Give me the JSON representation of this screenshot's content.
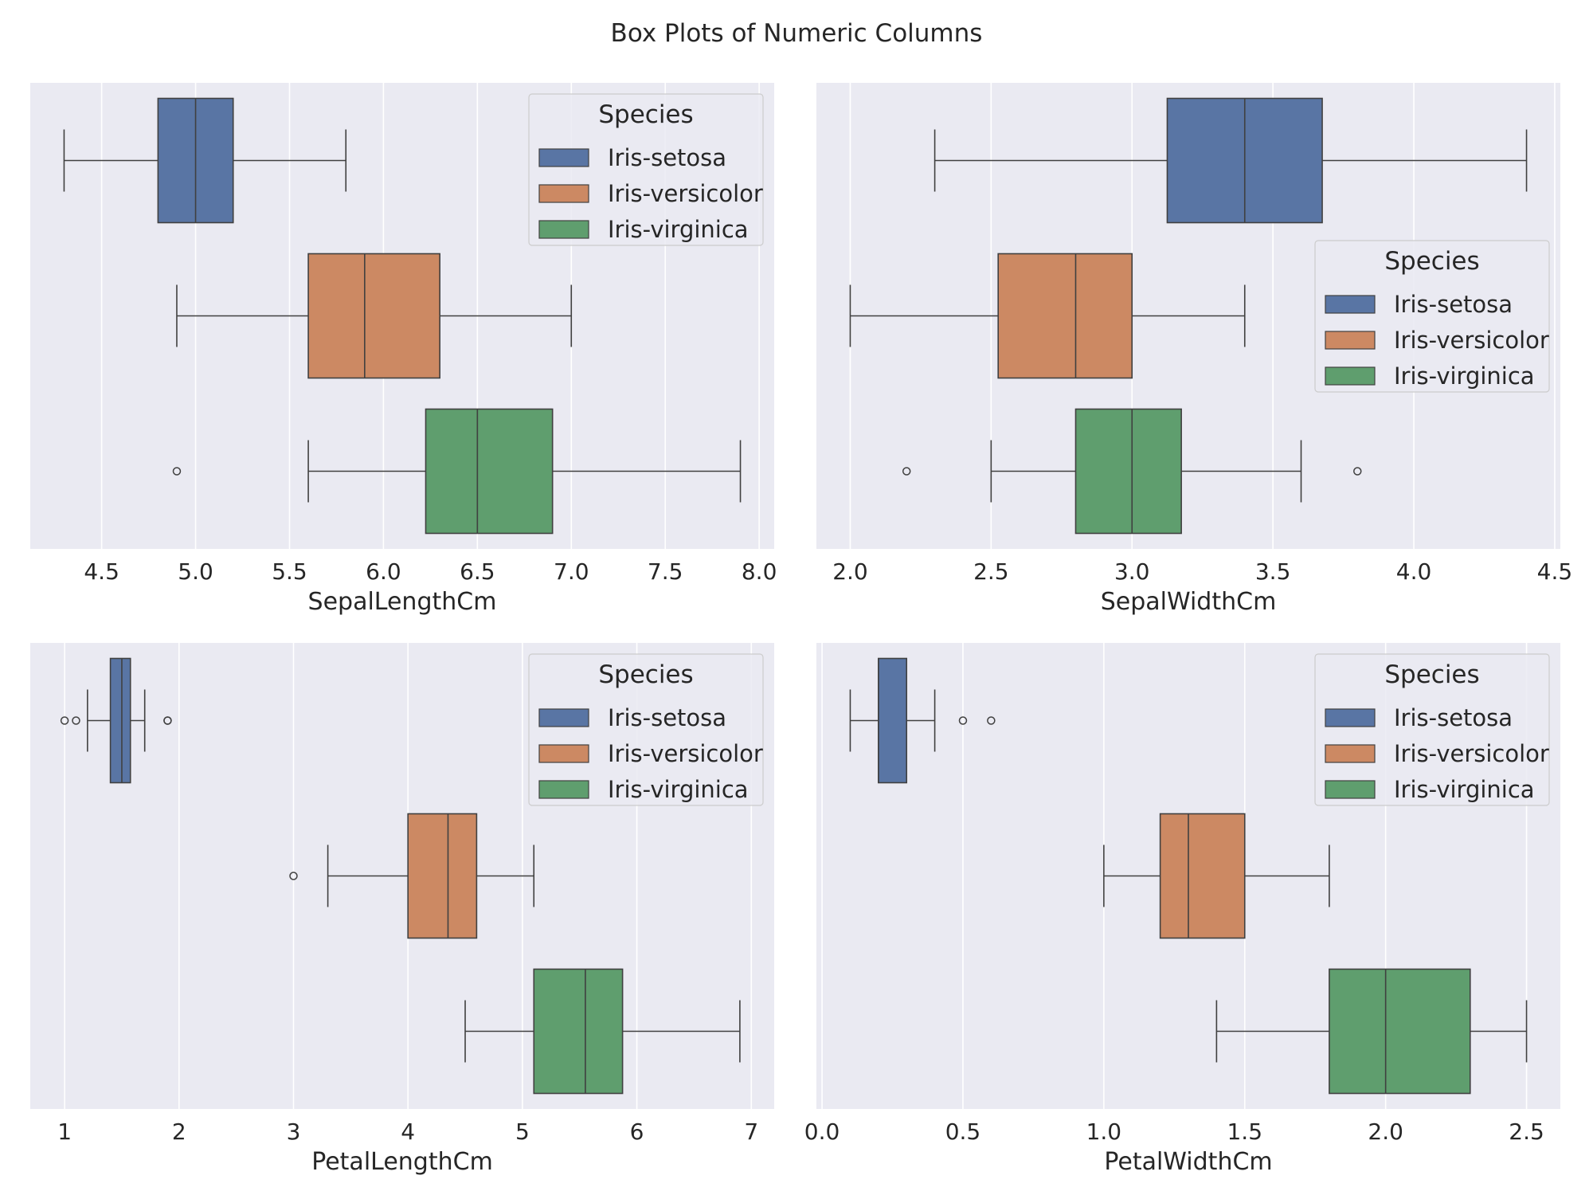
{
  "figure": {
    "title": "Box Plots of Numeric Columns"
  },
  "colors": {
    "background": "#eaeaf2",
    "grid": "#ffffff",
    "line": "#404040",
    "Iris-setosa": "#5975a4",
    "Iris-versicolor": "#cc8963",
    "Iris-virginica": "#5f9e6e"
  },
  "legend": {
    "title": "Species",
    "entries": [
      "Iris-setosa",
      "Iris-versicolor",
      "Iris-virginica"
    ]
  },
  "chart_data": [
    {
      "type": "box",
      "orientation": "horizontal",
      "xlabel": "SepalLengthCm",
      "xlim": [
        4.12,
        8.08
      ],
      "ticks": [
        "4.5",
        "5.0",
        "5.5",
        "6.0",
        "6.5",
        "7.0",
        "7.5",
        "8.0"
      ],
      "tick_values": [
        4.5,
        5.0,
        5.5,
        6.0,
        6.5,
        7.0,
        7.5,
        8.0
      ],
      "grid": true,
      "legend_location": "upper-right",
      "series": [
        {
          "name": "Iris-setosa",
          "whisker_low": 4.3,
          "q1": 4.8,
          "median": 5.0,
          "q3": 5.2,
          "whisker_high": 5.8,
          "outliers": []
        },
        {
          "name": "Iris-versicolor",
          "whisker_low": 4.9,
          "q1": 5.6,
          "median": 5.9,
          "q3": 6.3,
          "whisker_high": 7.0,
          "outliers": []
        },
        {
          "name": "Iris-virginica",
          "whisker_low": 5.6,
          "q1": 6.225,
          "median": 6.5,
          "q3": 6.9,
          "whisker_high": 7.9,
          "outliers": [
            4.9
          ]
        }
      ]
    },
    {
      "type": "box",
      "orientation": "horizontal",
      "xlabel": "SepalWidthCm",
      "xlim": [
        1.88,
        4.52
      ],
      "ticks": [
        "2.0",
        "2.5",
        "3.0",
        "3.5",
        "4.0",
        "4.5"
      ],
      "tick_values": [
        2.0,
        2.5,
        3.0,
        3.5,
        4.0,
        4.5
      ],
      "grid": true,
      "legend_location": "center-right",
      "series": [
        {
          "name": "Iris-setosa",
          "whisker_low": 2.3,
          "q1": 3.125,
          "median": 3.4,
          "q3": 3.675,
          "whisker_high": 4.4,
          "outliers": []
        },
        {
          "name": "Iris-versicolor",
          "whisker_low": 2.0,
          "q1": 2.525,
          "median": 2.8,
          "q3": 3.0,
          "whisker_high": 3.4,
          "outliers": []
        },
        {
          "name": "Iris-virginica",
          "whisker_low": 2.5,
          "q1": 2.8,
          "median": 3.0,
          "q3": 3.175,
          "whisker_high": 3.6,
          "outliers": [
            2.2,
            3.8
          ]
        }
      ]
    },
    {
      "type": "box",
      "orientation": "horizontal",
      "xlabel": "PetalLengthCm",
      "xlim": [
        0.7,
        7.2
      ],
      "ticks": [
        "1",
        "2",
        "3",
        "4",
        "5",
        "6",
        "7"
      ],
      "tick_values": [
        1,
        2,
        3,
        4,
        5,
        6,
        7
      ],
      "grid": true,
      "legend_location": "upper-right",
      "series": [
        {
          "name": "Iris-setosa",
          "whisker_low": 1.2,
          "q1": 1.4,
          "median": 1.5,
          "q3": 1.575,
          "whisker_high": 1.7,
          "outliers": [
            1.0,
            1.1,
            1.9,
            1.9
          ]
        },
        {
          "name": "Iris-versicolor",
          "whisker_low": 3.3,
          "q1": 4.0,
          "median": 4.35,
          "q3": 4.6,
          "whisker_high": 5.1,
          "outliers": [
            3.0
          ]
        },
        {
          "name": "Iris-virginica",
          "whisker_low": 4.5,
          "q1": 5.1,
          "median": 5.55,
          "q3": 5.875,
          "whisker_high": 6.9,
          "outliers": []
        }
      ]
    },
    {
      "type": "box",
      "orientation": "horizontal",
      "xlabel": "PetalWidthCm",
      "xlim": [
        -0.02,
        2.62
      ],
      "ticks": [
        "0.0",
        "0.5",
        "1.0",
        "1.5",
        "2.0",
        "2.5"
      ],
      "tick_values": [
        0.0,
        0.5,
        1.0,
        1.5,
        2.0,
        2.5
      ],
      "grid": true,
      "legend_location": "upper-right",
      "series": [
        {
          "name": "Iris-setosa",
          "whisker_low": 0.1,
          "q1": 0.2,
          "median": 0.2,
          "q3": 0.3,
          "whisker_high": 0.4,
          "outliers": [
            0.5,
            0.6
          ]
        },
        {
          "name": "Iris-versicolor",
          "whisker_low": 1.0,
          "q1": 1.2,
          "median": 1.3,
          "q3": 1.5,
          "whisker_high": 1.8,
          "outliers": []
        },
        {
          "name": "Iris-virginica",
          "whisker_low": 1.4,
          "q1": 1.8,
          "median": 2.0,
          "q3": 2.3,
          "whisker_high": 2.5,
          "outliers": []
        }
      ]
    }
  ]
}
